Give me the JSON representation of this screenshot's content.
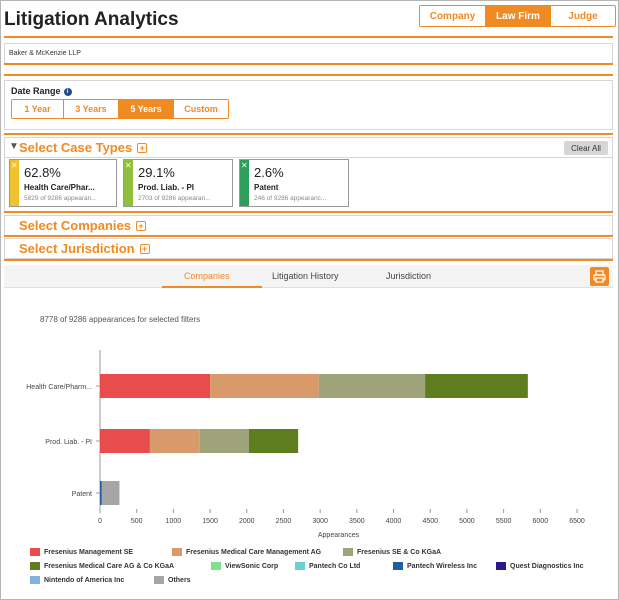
{
  "app": {
    "title": "Litigation Analytics"
  },
  "view_tabs": [
    {
      "label": "Company",
      "active": false
    },
    {
      "label": "Law Firm",
      "active": true
    },
    {
      "label": "Judge",
      "active": false
    }
  ],
  "firm": {
    "name": "Baker & McKenzie LLP"
  },
  "date_range": {
    "label": "Date Range",
    "info_icon": "info-icon",
    "options": [
      {
        "label": "1 Year",
        "active": false
      },
      {
        "label": "3 Years",
        "active": false
      },
      {
        "label": "5 Years",
        "active": true
      },
      {
        "label": "Custom",
        "active": false
      }
    ]
  },
  "case_types": {
    "title": "Select Case Types",
    "clear_all": "Clear All",
    "cards": [
      {
        "percent": "62.8%",
        "name": "Health Care/Phar...",
        "sub": "5829 of 9286 appearan...",
        "color": "#f2c12e"
      },
      {
        "percent": "29.1%",
        "name": "Prod. Liab. - PI",
        "sub": "2703 of 9286 appearan...",
        "color": "#8fbf3c"
      },
      {
        "percent": "2.6%",
        "name": "Patent",
        "sub": "246 of 9286 appearanc...",
        "color": "#2e9e5b"
      }
    ]
  },
  "sections": {
    "companies": "Select Companies",
    "jurisdiction": "Select Jurisdiction"
  },
  "result_tabs": [
    {
      "label": "Companies",
      "active": true
    },
    {
      "label": "Litigation History",
      "active": false
    },
    {
      "label": "Jurisdiction",
      "active": false
    }
  ],
  "appearances_text": "8778 of 9286 appearances for selected filters",
  "chart_data": {
    "type": "bar",
    "orientation": "horizontal",
    "stacked": true,
    "categories": [
      "Health Care/Pharm...",
      "Prod. Liab. - PI",
      "Patent"
    ],
    "xlabel": "Appearances",
    "xlim": [
      0,
      6500
    ],
    "xticks": [
      0,
      500,
      1000,
      1500,
      2000,
      2500,
      3000,
      3500,
      4000,
      4500,
      5000,
      5500,
      6000,
      6500
    ],
    "series": [
      {
        "name": "Fresenius Management SE",
        "color": "#e84c4c",
        "values": [
          1500,
          680,
          0
        ]
      },
      {
        "name": "Fresenius Medical Care Management AG",
        "color": "#d89a6a",
        "values": [
          1480,
          680,
          0
        ]
      },
      {
        "name": "Fresenius SE & Co KGaA",
        "color": "#9ea37a",
        "values": [
          1450,
          670,
          0
        ]
      },
      {
        "name": "Fresenius Medical Care AG & Co KGaA",
        "color": "#5e7d1f",
        "values": [
          1400,
          670,
          0
        ]
      },
      {
        "name": "ViewSonic Corp",
        "color": "#7de08e",
        "values": [
          0,
          0,
          0
        ]
      },
      {
        "name": "Pantech Co Ltd",
        "color": "#6ccfd6",
        "values": [
          0,
          0,
          0
        ]
      },
      {
        "name": "Pantech Wireless Inc",
        "color": "#1f5f9e",
        "values": [
          0,
          0,
          25
        ]
      },
      {
        "name": "Quest Diagnostics Inc",
        "color": "#2a1a8c",
        "values": [
          0,
          0,
          0
        ]
      },
      {
        "name": "Nintendo of America Inc",
        "color": "#7fb2e0",
        "values": [
          0,
          0,
          0
        ]
      },
      {
        "name": "Others",
        "color": "#a6a6a6",
        "values": [
          0,
          0,
          240
        ]
      }
    ],
    "legend_position": "bottom",
    "grid": false
  }
}
